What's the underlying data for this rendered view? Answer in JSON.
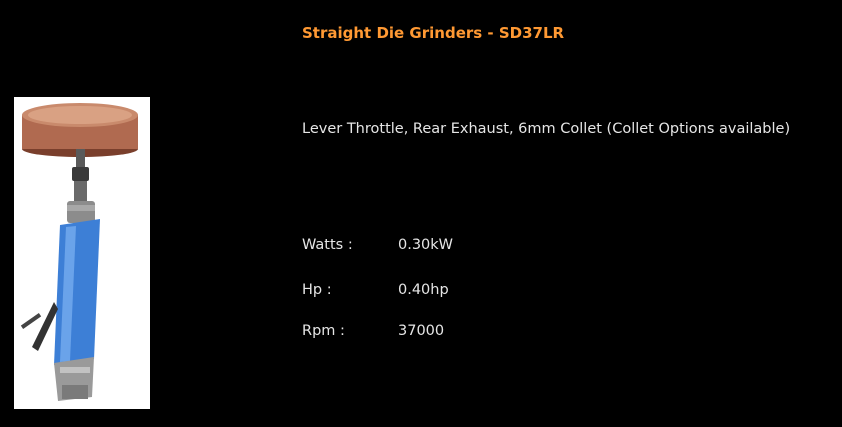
{
  "product": {
    "title": "Straight Die Grinders - SD37LR",
    "image_icon": "die-grinder-product-photo",
    "description": "Lever Throttle, Rear Exhaust, 6mm Collet (Collet Options available)"
  },
  "specs": [
    {
      "label": "Watts :",
      "value": "0.30kW"
    },
    {
      "label": "Hp :",
      "value": "0.40hp"
    },
    {
      "label": "Rpm :",
      "value": "37000"
    }
  ],
  "colors": {
    "background": "#000000",
    "title": "#ff9933",
    "text": "#e6e6e6"
  }
}
